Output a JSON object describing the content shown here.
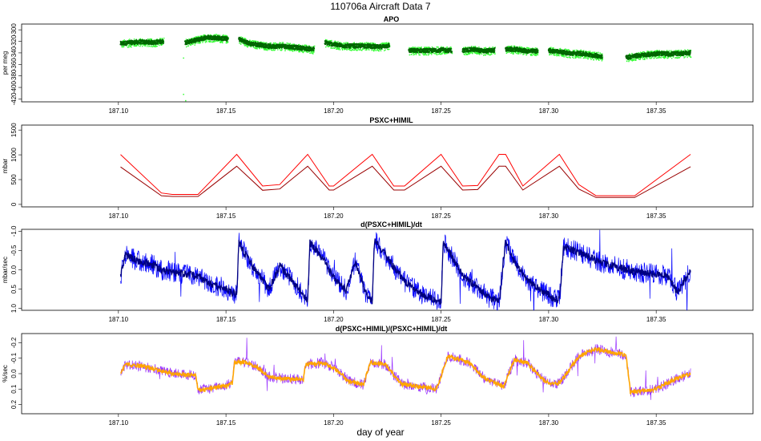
{
  "figure": {
    "title": "110706a   Aircraft Data 7",
    "xlabel": "day of year",
    "xlim": [
      187.055,
      187.395
    ],
    "x_ticks": [
      "187.10",
      "187.15",
      "187.20",
      "187.25",
      "187.30",
      "187.35"
    ],
    "x_tick_values": [
      187.1,
      187.15,
      187.2,
      187.25,
      187.3,
      187.35
    ]
  },
  "chart_data": [
    {
      "type": "scatter",
      "title": "APO",
      "ylabel": "per meg",
      "ylim": [
        -425,
        -290
      ],
      "y_ticks": [
        "-300",
        "-320",
        "-340",
        "-360",
        "-380",
        "-400",
        "-420"
      ],
      "y_tick_values": [
        -300,
        -320,
        -340,
        -360,
        -380,
        -400,
        -420
      ],
      "colors": {
        "raw": "#33ff33",
        "smoothed": "#006600"
      },
      "series": [
        {
          "role": "smoothed",
          "x": [
            187.101,
            187.106,
            187.111,
            187.116,
            187.121,
            187.131,
            187.136,
            187.141,
            187.146,
            187.151,
            187.156,
            187.161,
            187.166,
            187.171,
            187.176,
            187.181,
            187.186,
            187.191,
            187.196,
            187.201,
            187.206,
            187.211,
            187.216,
            187.221,
            187.226,
            187.235,
            187.24,
            187.245,
            187.25,
            187.255,
            187.26,
            187.265,
            187.27,
            187.275,
            187.28,
            187.285,
            187.29,
            187.295,
            187.3,
            187.305,
            187.31,
            187.315,
            187.32,
            187.325,
            187.336,
            187.341,
            187.346,
            187.351,
            187.356,
            187.361,
            187.366
          ],
          "y": [
            -324,
            -322,
            -321,
            -322,
            -320,
            -322,
            -318,
            -313,
            -314,
            -316,
            -316,
            -324,
            -326,
            -329,
            -328,
            -330,
            -332,
            -334,
            -322,
            -326,
            -328,
            -328,
            -328,
            -330,
            -327,
            -336,
            -336,
            -336,
            -335,
            -336,
            -336,
            -334,
            -337,
            -335,
            -334,
            -334,
            -337,
            -337,
            -336,
            -338,
            -341,
            -341,
            -344,
            -346,
            -348,
            -345,
            -343,
            -341,
            -342,
            -341,
            -340
          ],
          "segment_gaps_after": [
            187.121,
            187.151,
            187.191,
            187.226,
            187.255,
            187.275,
            187.295,
            187.325
          ]
        }
      ],
      "outliers": [
        {
          "x": 187.13,
          "y": -411
        },
        {
          "x": 187.131,
          "y": -422
        },
        {
          "x": 187.13,
          "y": -348
        }
      ]
    },
    {
      "type": "line",
      "title": "PSXC+HIMIL",
      "ylabel": "mbar",
      "ylim": [
        -50,
        1600
      ],
      "y_ticks": [
        "0",
        "500",
        "1000",
        "1500"
      ],
      "y_tick_values": [
        0,
        500,
        1000,
        1500
      ],
      "colors": {
        "upper": "#ff0000",
        "lower": "#990000"
      },
      "series": [
        {
          "role": "upper",
          "x": [
            187.101,
            187.12,
            187.125,
            187.137,
            187.155,
            187.167,
            187.175,
            187.188,
            187.198,
            187.2,
            187.218,
            187.228,
            187.233,
            187.25,
            187.26,
            187.267,
            187.277,
            187.28,
            187.288,
            187.305,
            187.314,
            187.322,
            187.34,
            187.366
          ],
          "y": [
            1005,
            230,
            200,
            200,
            1010,
            370,
            400,
            1010,
            370,
            370,
            1010,
            370,
            370,
            1010,
            370,
            380,
            1010,
            1010,
            370,
            1010,
            400,
            175,
            175,
            1010
          ]
        },
        {
          "role": "lower",
          "x": [
            187.101,
            187.12,
            187.125,
            187.137,
            187.155,
            187.167,
            187.175,
            187.188,
            187.198,
            187.2,
            187.218,
            187.228,
            187.233,
            187.25,
            187.26,
            187.267,
            187.277,
            187.28,
            187.288,
            187.305,
            187.314,
            187.322,
            187.34,
            187.366
          ],
          "y": [
            755,
            175,
            160,
            160,
            770,
            285,
            310,
            770,
            290,
            290,
            770,
            290,
            290,
            770,
            290,
            300,
            770,
            770,
            290,
            770,
            310,
            140,
            140,
            760
          ]
        }
      ]
    },
    {
      "type": "line",
      "title": "d(PSXC+HIMIL)/dt",
      "ylabel": "mbar/sec",
      "ylim": [
        1.05,
        -1.05
      ],
      "inverted_y": true,
      "y_ticks": [
        "-1.0",
        "-0.5",
        "0.0",
        "0.5",
        "1.0"
      ],
      "y_tick_values": [
        -1.0,
        -0.5,
        0.0,
        0.5,
        1.0
      ],
      "colors": {
        "raw": "#0000ff",
        "smoothed": "#000080"
      },
      "series": [
        {
          "role": "smoothed",
          "x": [
            187.101,
            187.103,
            187.11,
            187.115,
            187.12,
            187.13,
            187.137,
            187.14,
            187.15,
            187.155,
            187.156,
            187.16,
            187.166,
            187.17,
            187.175,
            187.184,
            187.188,
            187.189,
            187.195,
            187.2,
            187.206,
            187.21,
            187.215,
            187.218,
            187.219,
            187.225,
            187.233,
            187.24,
            187.25,
            187.251,
            187.26,
            187.267,
            187.272,
            187.277,
            187.28,
            187.283,
            187.29,
            187.297,
            187.303,
            187.305,
            187.307,
            187.314,
            187.322,
            187.33,
            187.34,
            187.355,
            187.36,
            187.366
          ],
          "y": [
            0.2,
            -0.4,
            -0.2,
            -0.15,
            0.0,
            0.1,
            0.15,
            0.3,
            0.5,
            0.65,
            -0.7,
            -0.3,
            0.2,
            0.5,
            -0.1,
            0.5,
            0.8,
            -0.7,
            -0.3,
            0.2,
            0.55,
            -0.2,
            0.6,
            0.85,
            -0.8,
            -0.3,
            0.3,
            0.6,
            0.85,
            -0.75,
            0.15,
            0.45,
            0.7,
            0.85,
            -0.75,
            -0.3,
            0.25,
            0.55,
            0.75,
            0.8,
            -0.6,
            -0.45,
            -0.25,
            -0.1,
            0.05,
            0.15,
            0.6,
            0.0
          ]
        }
      ]
    },
    {
      "type": "line",
      "title": "d(PSXC+HIMIL)/(PSXC+HIMIL)/dt",
      "ylabel": "%/sec",
      "ylim": [
        0.26,
        -0.26
      ],
      "inverted_y": true,
      "y_ticks": [
        "-0.2",
        "-0.1",
        "0.0",
        "0.1",
        "0.2"
      ],
      "y_tick_values": [
        -0.2,
        -0.1,
        0.0,
        0.1,
        0.2
      ],
      "colors": {
        "raw": "#9933ff",
        "smoothed": "#ffa500"
      },
      "series": [
        {
          "role": "smoothed",
          "x": [
            187.101,
            187.103,
            187.11,
            187.117,
            187.125,
            187.136,
            187.137,
            187.145,
            187.15,
            187.153,
            187.154,
            187.16,
            187.166,
            187.17,
            187.176,
            187.186,
            187.187,
            187.195,
            187.2,
            187.205,
            187.207,
            187.214,
            187.217,
            187.224,
            187.228,
            187.232,
            187.242,
            187.248,
            187.253,
            187.257,
            187.263,
            187.27,
            187.276,
            187.279,
            187.284,
            187.29,
            187.296,
            187.301,
            187.305,
            187.314,
            187.318,
            187.322,
            187.325,
            187.336,
            187.338,
            187.35,
            187.36,
            187.366
          ],
          "y": [
            0.0,
            -0.06,
            -0.05,
            -0.03,
            0.0,
            0.01,
            0.11,
            0.09,
            0.08,
            0.06,
            -0.08,
            -0.07,
            -0.03,
            0.02,
            0.03,
            0.04,
            -0.06,
            -0.07,
            -0.04,
            0.02,
            0.05,
            0.07,
            -0.07,
            -0.06,
            0.01,
            0.07,
            0.09,
            0.1,
            -0.11,
            -0.1,
            -0.07,
            0.03,
            0.06,
            0.09,
            -0.09,
            -0.07,
            0.02,
            0.07,
            0.06,
            -0.11,
            -0.14,
            -0.16,
            -0.15,
            -0.12,
            0.12,
            0.1,
            0.03,
            0.0
          ]
        }
      ]
    }
  ]
}
